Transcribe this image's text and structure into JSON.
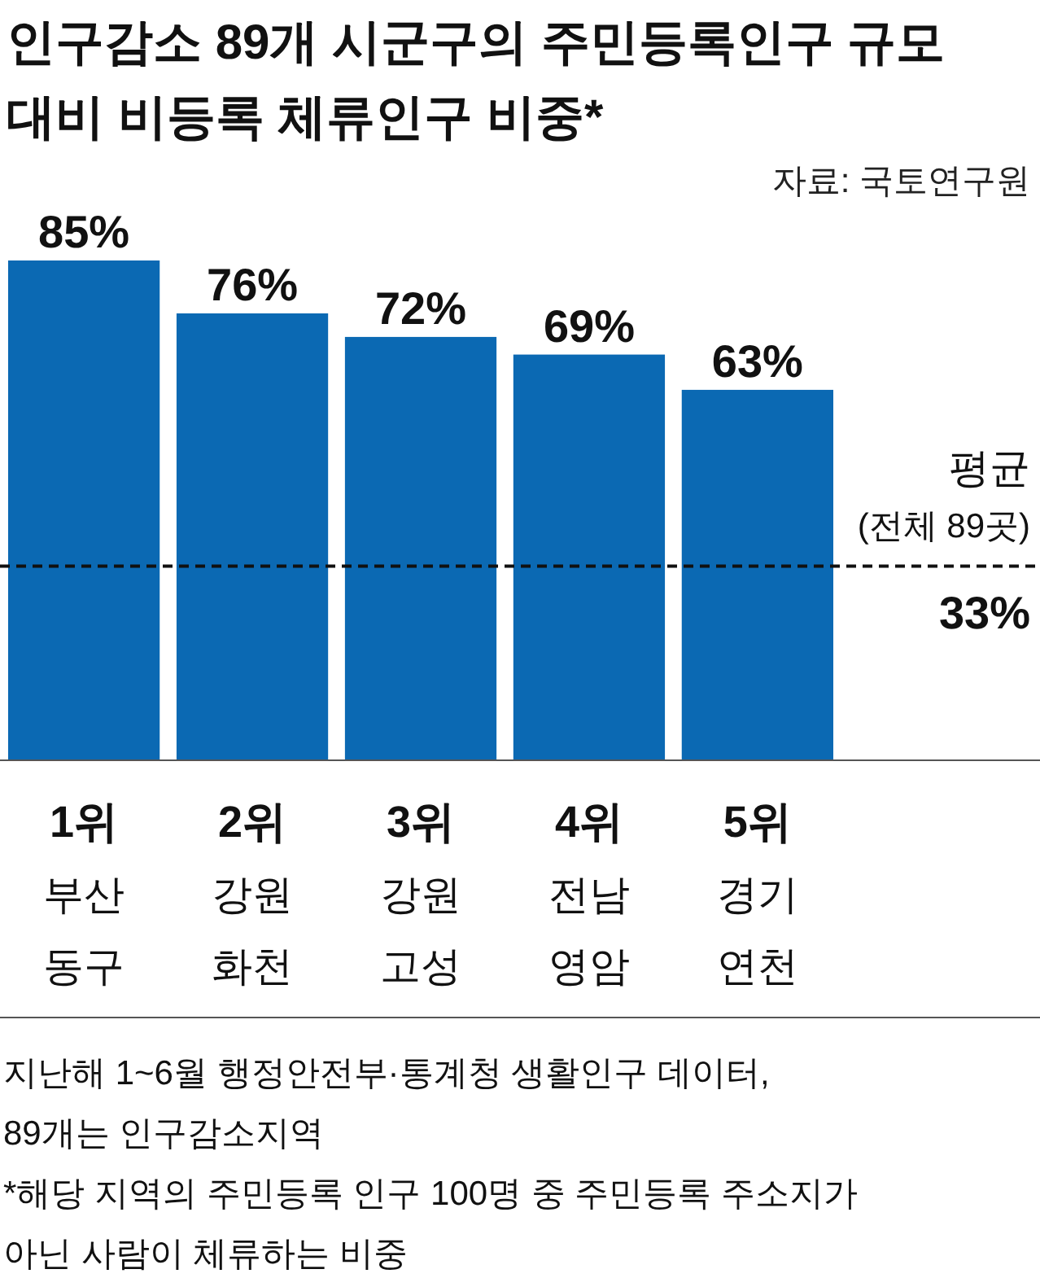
{
  "chart_data": {
    "type": "bar",
    "title": "인구감소 89개 시군구의 주민등록인구 규모 대비 비등록 체류인구 비중*",
    "categories": [
      "1위 부산 동구",
      "2위 강원 화천",
      "3위 강원 고성",
      "4위 전남 영암",
      "5위 경기 연천"
    ],
    "values": [
      85,
      76,
      72,
      69,
      63
    ],
    "color": "#0b69b3",
    "value_labels": [
      "85%",
      "76%",
      "72%",
      "69%",
      "63%"
    ],
    "ref_lines": [
      {
        "axis": "y",
        "value": 33,
        "label": "평균 (전체 89곳)",
        "color": "#111111",
        "line_style": "dashed"
      }
    ],
    "annotations": [
      "자료: 국토연구원",
      {
        "text": "33%",
        "y": 33
      },
      "지난해 1~6월 행정안전부·통계청 생활인구 데이터,\n89개는 인구감소지역",
      "*해당 지역의 주민등록 인구 100명 중 주민등록 주소지가\n아닌 사람이 체류하는 비중"
    ]
  }
}
